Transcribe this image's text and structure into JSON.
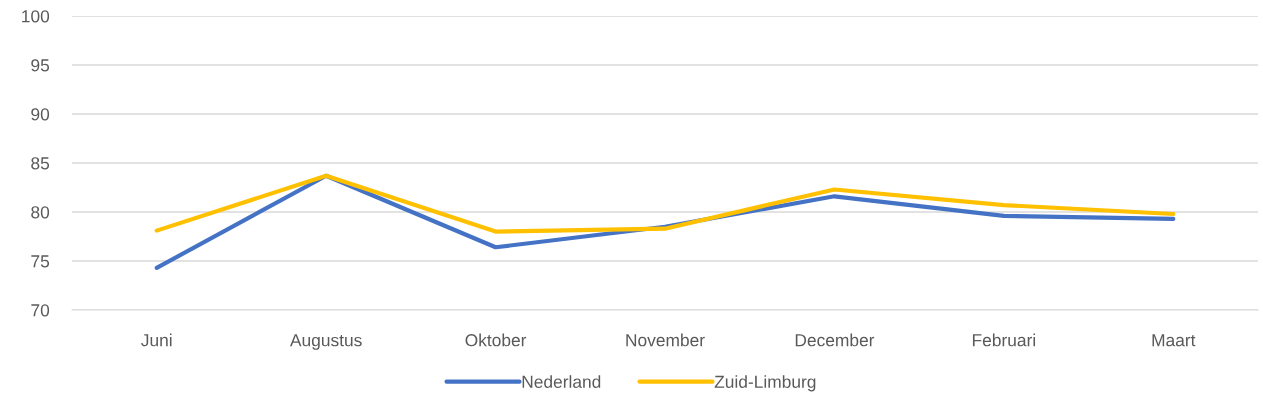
{
  "chart_data": {
    "type": "line",
    "categories": [
      "Juni",
      "Augustus",
      "Oktober",
      "November",
      "December",
      "Februari",
      "Maart"
    ],
    "series": [
      {
        "name": "Nederland",
        "color": "#4472c4",
        "values": [
          74.3,
          83.7,
          76.4,
          78.5,
          81.6,
          79.6,
          79.3
        ]
      },
      {
        "name": "Zuid-Limburg",
        "color": "#ffc000",
        "values": [
          78.1,
          83.7,
          78.0,
          78.3,
          82.3,
          80.7,
          79.8
        ]
      }
    ],
    "ylim": [
      70,
      100
    ],
    "yticks": [
      70,
      75,
      80,
      85,
      90,
      95,
      100
    ],
    "grid": "y",
    "legend": "bottom",
    "line_style": "solid"
  }
}
